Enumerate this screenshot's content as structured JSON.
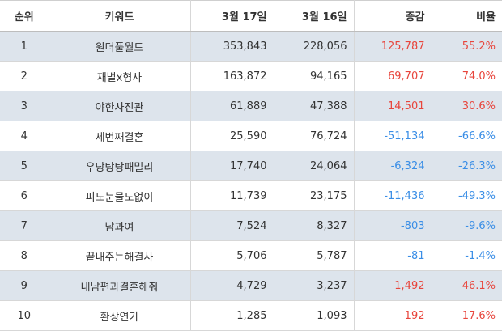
{
  "colors": {
    "increase": "#e8453c",
    "decrease": "#3a8ee6",
    "row_shade": "#dde4ec"
  },
  "headers": {
    "rank": "순위",
    "keyword": "키워드",
    "date1": "3월 17일",
    "date2": "3월 16일",
    "diff": "증감",
    "ratio": "비율"
  },
  "rows": [
    {
      "rank": "1",
      "keyword": "원더풀월드",
      "date1": "353,843",
      "date2": "228,056",
      "diff": "125,787",
      "ratio": "55.2%"
    },
    {
      "rank": "2",
      "keyword": "재벌x형사",
      "date1": "163,872",
      "date2": "94,165",
      "diff": "69,707",
      "ratio": "74.0%"
    },
    {
      "rank": "3",
      "keyword": "야한사진관",
      "date1": "61,889",
      "date2": "47,388",
      "diff": "14,501",
      "ratio": "30.6%"
    },
    {
      "rank": "4",
      "keyword": "세번째결혼",
      "date1": "25,590",
      "date2": "76,724",
      "diff": "-51,134",
      "ratio": "-66.6%"
    },
    {
      "rank": "5",
      "keyword": "우당탕탕패밀리",
      "date1": "17,740",
      "date2": "24,064",
      "diff": "-6,324",
      "ratio": "-26.3%"
    },
    {
      "rank": "6",
      "keyword": "피도눈물도없이",
      "date1": "11,739",
      "date2": "23,175",
      "diff": "-11,436",
      "ratio": "-49.3%"
    },
    {
      "rank": "7",
      "keyword": "남과여",
      "date1": "7,524",
      "date2": "8,327",
      "diff": "-803",
      "ratio": "-9.6%"
    },
    {
      "rank": "8",
      "keyword": "끝내주는해결사",
      "date1": "5,706",
      "date2": "5,787",
      "diff": "-81",
      "ratio": "-1.4%"
    },
    {
      "rank": "9",
      "keyword": "내남편과결혼해줘",
      "date1": "4,729",
      "date2": "3,237",
      "diff": "1,492",
      "ratio": "46.1%"
    },
    {
      "rank": "10",
      "keyword": "환상연가",
      "date1": "1,285",
      "date2": "1,093",
      "diff": "192",
      "ratio": "17.6%"
    }
  ]
}
